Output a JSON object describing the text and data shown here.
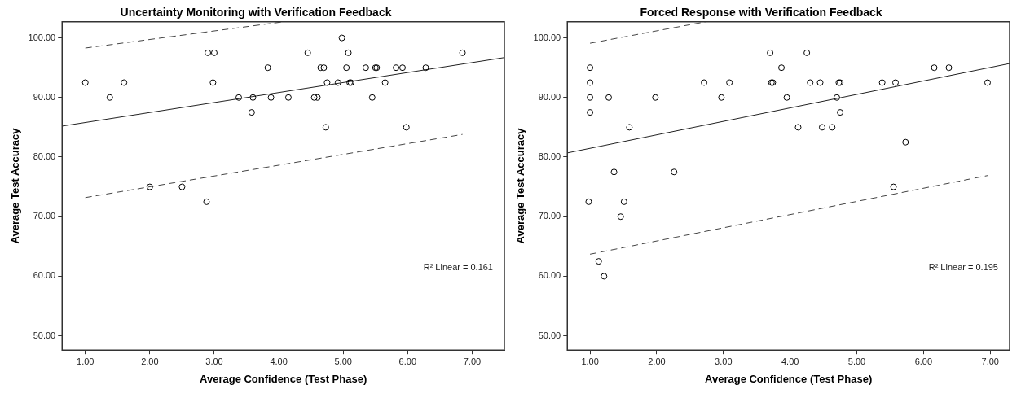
{
  "chart_data": [
    {
      "type": "scatter",
      "title": "Uncertainty Monitoring with Verification Feedback",
      "xlabel": "Average Confidence (Test Phase)",
      "ylabel": "Average Test Accuracy",
      "xlim": [
        0.64,
        7.5
      ],
      "ylim": [
        47.6,
        102.7
      ],
      "xticks": [
        {
          "value": 1,
          "label": "1.00"
        },
        {
          "value": 2,
          "label": "2.00"
        },
        {
          "value": 3,
          "label": "3.00"
        },
        {
          "value": 4,
          "label": "4.00"
        },
        {
          "value": 5,
          "label": "5.00"
        },
        {
          "value": 6,
          "label": "6.00"
        },
        {
          "value": 7,
          "label": "7.00"
        }
      ],
      "yticks": [
        {
          "value": 50,
          "label": "50.00"
        },
        {
          "value": 60,
          "label": "60.00"
        },
        {
          "value": 70,
          "label": "70.00"
        },
        {
          "value": 80,
          "label": "80.00"
        },
        {
          "value": 90,
          "label": "90.00"
        },
        {
          "value": 100,
          "label": "100.00"
        }
      ],
      "grid": false,
      "legend": false,
      "series": [
        {
          "type": "scatter",
          "color": "#000000",
          "marker": "circle",
          "x": [
            1.0,
            1.38,
            1.6,
            2.0,
            2.5,
            2.88,
            2.9,
            3.0,
            2.98,
            3.38,
            3.58,
            3.6,
            3.83,
            3.88,
            4.15,
            4.45,
            4.55,
            4.6,
            4.65,
            4.7,
            4.73,
            4.75,
            4.92,
            4.98,
            5.05,
            5.08,
            5.1,
            5.12,
            5.35,
            5.45,
            5.5,
            5.52,
            5.65,
            5.82,
            5.92,
            5.98,
            6.28,
            6.85
          ],
          "values": [
            92.5,
            90,
            92.5,
            75,
            75,
            72.5,
            97.5,
            97.5,
            92.5,
            90,
            87.5,
            90,
            95,
            90,
            90,
            97.5,
            90,
            90,
            95,
            95,
            85,
            92.5,
            92.5,
            100,
            95,
            97.5,
            92.5,
            92.5,
            95,
            90,
            95,
            95,
            92.5,
            95,
            95,
            85,
            95,
            97.5
          ]
        },
        {
          "type": "line",
          "color": "#222222",
          "marker": "none",
          "line_style": "solid",
          "x": [
            0.64,
            7.5
          ],
          "values": [
            85.2,
            96.7
          ]
        },
        {
          "type": "line",
          "color": "#444444",
          "marker": "none",
          "line_style": "dashed",
          "x": [
            1.0,
            4.07
          ],
          "values": [
            98.3,
            102.7
          ]
        },
        {
          "type": "line",
          "color": "#444444",
          "marker": "none",
          "line_style": "dashed",
          "x": [
            1.0,
            6.85
          ],
          "values": [
            73.2,
            83.8
          ]
        }
      ],
      "annotations": [
        "R² Linear = 0.161"
      ]
    },
    {
      "type": "scatter",
      "title": "Forced Response with Verification Feedback",
      "xlabel": "Average Confidence (Test Phase)",
      "ylabel": "Average Test Accuracy",
      "xlim": [
        0.66,
        7.29
      ],
      "ylim": [
        47.6,
        102.7
      ],
      "xticks": [
        {
          "value": 1,
          "label": "1.00"
        },
        {
          "value": 2,
          "label": "2.00"
        },
        {
          "value": 3,
          "label": "3.00"
        },
        {
          "value": 4,
          "label": "4.00"
        },
        {
          "value": 5,
          "label": "5.00"
        },
        {
          "value": 6,
          "label": "6.00"
        },
        {
          "value": 7,
          "label": "7.00"
        }
      ],
      "yticks": [
        {
          "value": 50,
          "label": "50.00"
        },
        {
          "value": 60,
          "label": "60.00"
        },
        {
          "value": 70,
          "label": "70.00"
        },
        {
          "value": 80,
          "label": "80.00"
        },
        {
          "value": 90,
          "label": "90.00"
        },
        {
          "value": 100,
          "label": "100.00"
        }
      ],
      "grid": false,
      "legend": false,
      "series": [
        {
          "type": "scatter",
          "color": "#000000",
          "marker": "circle",
          "x": [
            1.0,
            1.0,
            1.0,
            1.0,
            0.98,
            1.13,
            1.21,
            1.28,
            1.36,
            1.46,
            1.51,
            1.59,
            1.98,
            2.26,
            2.71,
            2.97,
            3.09,
            3.7,
            3.72,
            3.74,
            3.87,
            3.95,
            4.12,
            4.25,
            4.3,
            4.45,
            4.48,
            4.63,
            4.7,
            4.73,
            4.75,
            4.75,
            5.38,
            5.55,
            5.58,
            5.73,
            6.16,
            6.38,
            6.96
          ],
          "values": [
            95,
            92.5,
            90,
            87.5,
            72.5,
            62.5,
            60,
            90,
            77.5,
            70,
            72.5,
            85,
            90,
            77.5,
            92.5,
            90,
            92.5,
            97.5,
            92.5,
            92.5,
            95,
            90,
            85,
            97.5,
            92.5,
            92.5,
            85,
            85,
            90,
            92.5,
            92.5,
            87.5,
            92.5,
            75,
            92.5,
            82.5,
            95,
            95,
            92.5
          ]
        },
        {
          "type": "line",
          "color": "#222222",
          "marker": "none",
          "line_style": "solid",
          "x": [
            0.66,
            7.29
          ],
          "values": [
            80.7,
            95.7
          ]
        },
        {
          "type": "line",
          "color": "#444444",
          "marker": "none",
          "line_style": "dashed",
          "x": [
            1.0,
            2.73
          ],
          "values": [
            99.1,
            102.7
          ]
        },
        {
          "type": "line",
          "color": "#444444",
          "marker": "none",
          "line_style": "dashed",
          "x": [
            1.0,
            6.96
          ],
          "values": [
            63.7,
            76.9
          ]
        }
      ],
      "annotations": [
        "R² Linear = 0.195"
      ]
    }
  ]
}
